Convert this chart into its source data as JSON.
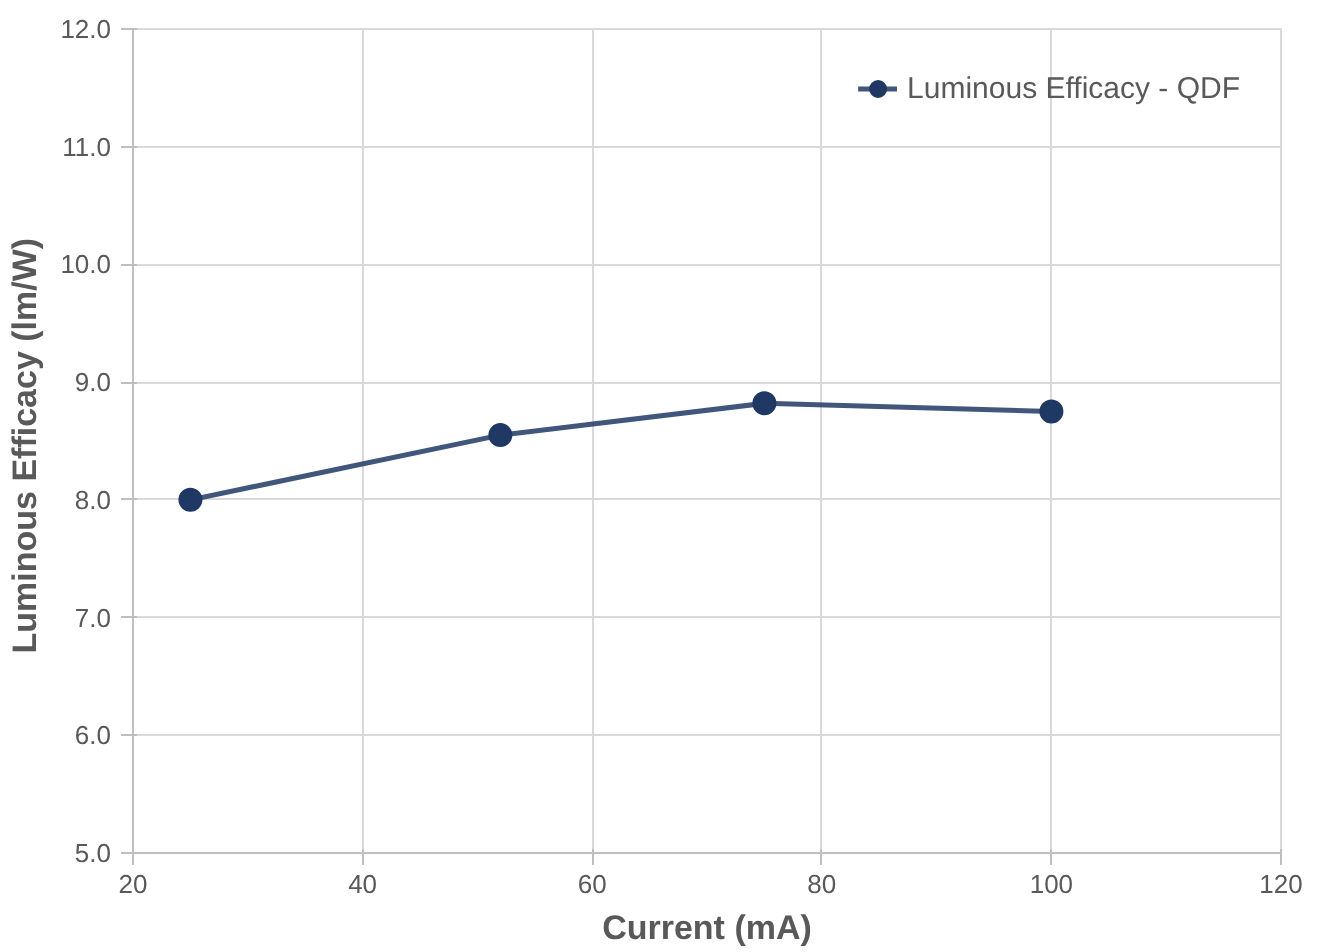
{
  "chart_data": {
    "type": "line",
    "xlabel": "Current (mA)",
    "ylabel": "Luminous Efficacy  (lm/W)",
    "x": [
      25,
      52,
      75,
      100
    ],
    "series": [
      {
        "name": "Luminous Efficacy - QDF",
        "color": "#1f3864",
        "values": [
          8.0,
          8.55,
          8.82,
          8.75
        ]
      }
    ],
    "xlim": [
      20,
      120
    ],
    "xticks": [
      20,
      40,
      60,
      80,
      100,
      120
    ],
    "ylim": [
      5.0,
      12.0
    ],
    "yticks": [
      {
        "value": 5,
        "label": "5.0"
      },
      {
        "value": 6,
        "label": "6.0"
      },
      {
        "value": 7,
        "label": "7.0"
      },
      {
        "value": 8,
        "label": "8.0"
      },
      {
        "value": 9,
        "label": "9.0"
      },
      {
        "value": 10,
        "label": "10.0"
      },
      {
        "value": 11,
        "label": "11.0"
      },
      {
        "value": 12,
        "label": "12.0"
      }
    ],
    "grid": true,
    "legend": "top right",
    "marker": "circle",
    "line_style": "solid"
  }
}
